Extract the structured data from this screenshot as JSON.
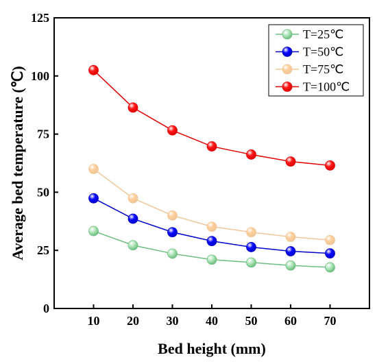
{
  "chart_data": {
    "type": "line",
    "xlabel": "Bed height (mm)",
    "ylabel": "Average bed temperature (℃)",
    "x": [
      10,
      20,
      30,
      40,
      50,
      60,
      70
    ],
    "xlim": [
      0,
      80
    ],
    "ylim": [
      0,
      125
    ],
    "xticks": [
      "10",
      "20",
      "30",
      "40",
      "50",
      "60",
      "70"
    ],
    "yticks": [
      "0",
      "25",
      "50",
      "75",
      "100",
      "125"
    ],
    "legend_position": "top-right",
    "grid": false,
    "series": [
      {
        "name": "T=25℃",
        "color": "#6dbe80",
        "fill": "#b5e8bf",
        "values": [
          33.3,
          27.2,
          23.6,
          21.0,
          19.8,
          18.5,
          17.7
        ]
      },
      {
        "name": "T=50℃",
        "color": "#0000cc",
        "fill": "#0a0aff",
        "values": [
          47.4,
          38.6,
          32.8,
          29.0,
          26.4,
          24.6,
          23.7
        ]
      },
      {
        "name": "T=75℃",
        "color": "#f0c79a",
        "fill": "#ffcf9c",
        "values": [
          60.0,
          47.4,
          40.0,
          35.2,
          32.8,
          30.8,
          29.4
        ]
      },
      {
        "name": "T=100℃",
        "color": "#e00000",
        "fill": "#ff1a1a",
        "values": [
          102.5,
          86.4,
          76.6,
          69.7,
          66.2,
          63.2,
          61.5
        ]
      }
    ]
  }
}
